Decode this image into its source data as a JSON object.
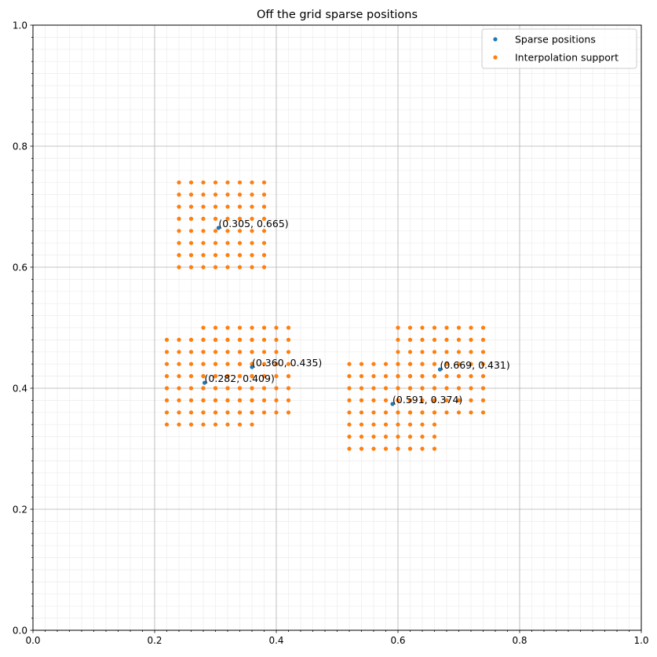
{
  "chart_data": {
    "type": "scatter",
    "title": "Off the grid sparse positions",
    "xlabel": "",
    "ylabel": "",
    "xlim": [
      0,
      1
    ],
    "ylim": [
      0,
      1
    ],
    "x_ticks": [
      "0.0",
      "0.2",
      "0.4",
      "0.6",
      "0.8",
      "1.0"
    ],
    "y_ticks": [
      "0.0",
      "0.2",
      "0.4",
      "0.6",
      "0.8",
      "1.0"
    ],
    "major_grid": true,
    "minor_grid": true,
    "legend": {
      "placement": "top-right",
      "entries": [
        "Sparse positions",
        "Interpolation support"
      ]
    },
    "colors": {
      "sparse": "#1f77b4",
      "support": "#ff7f0e"
    },
    "series": [
      {
        "name": "Sparse positions",
        "points": [
          [
            0.305,
            0.665
          ],
          [
            0.36,
            0.435
          ],
          [
            0.282,
            0.409
          ],
          [
            0.669,
            0.431
          ],
          [
            0.591,
            0.374
          ]
        ],
        "labels": [
          "(0.305, 0.665)",
          "(0.360, 0.435)",
          "(0.282, 0.409)",
          "(0.669, 0.431)",
          "(0.591, 0.374)"
        ]
      },
      {
        "name": "Interpolation support",
        "blocks": [
          {
            "x_range": [
              0.24,
              0.38
            ],
            "y_range": [
              0.6,
              0.74
            ],
            "step": 0.02
          },
          {
            "x_range": [
              0.28,
              0.42
            ],
            "y_range": [
              0.36,
              0.5
            ],
            "step": 0.02
          },
          {
            "x_range": [
              0.22,
              0.36
            ],
            "y_range": [
              0.34,
              0.48
            ],
            "step": 0.02
          },
          {
            "x_range": [
              0.6,
              0.74
            ],
            "y_range": [
              0.36,
              0.5
            ],
            "step": 0.02
          },
          {
            "x_range": [
              0.52,
              0.66
            ],
            "y_range": [
              0.3,
              0.44
            ],
            "step": 0.02
          }
        ]
      }
    ]
  }
}
